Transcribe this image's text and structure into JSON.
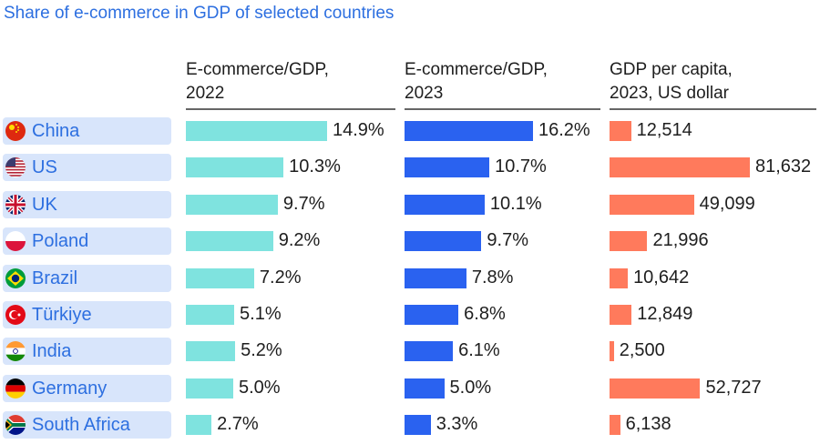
{
  "title": "Share of e-commerce in GDP of selected countries",
  "headers": {
    "col1": [
      "E-commerce/GDP,",
      "2022"
    ],
    "col2": [
      "E-commerce/GDP,",
      "2023"
    ],
    "col3": [
      "GDP per capita,",
      "2023, US dollar"
    ]
  },
  "colors": {
    "bar_2022": "#7fe3df",
    "bar_2023": "#2a62f0",
    "bar_gdp": "#ff7a5c",
    "label_bg": "#d8e5fb",
    "label_text": "#2d6fe0"
  },
  "rows": [
    {
      "country": "China",
      "flag": "china-flag-icon",
      "v2022": "14.9%",
      "v2023": "16.2%",
      "gdp": "12,514"
    },
    {
      "country": "US",
      "flag": "us-flag-icon",
      "v2022": "10.3%",
      "v2023": "10.7%",
      "gdp": "81,632"
    },
    {
      "country": "UK",
      "flag": "uk-flag-icon",
      "v2022": "9.7%",
      "v2023": "10.1%",
      "gdp": "49,099"
    },
    {
      "country": "Poland",
      "flag": "poland-flag-icon",
      "v2022": "9.2%",
      "v2023": "9.7%",
      "gdp": "21,996"
    },
    {
      "country": "Brazil",
      "flag": "brazil-flag-icon",
      "v2022": "7.2%",
      "v2023": "7.8%",
      "gdp": "10,642"
    },
    {
      "country": "Türkiye",
      "flag": "turkiye-flag-icon",
      "v2022": "5.1%",
      "v2023": "6.8%",
      "gdp": "12,849"
    },
    {
      "country": "India",
      "flag": "india-flag-icon",
      "v2022": "5.2%",
      "v2023": "6.1%",
      "gdp": "2,500"
    },
    {
      "country": "Germany",
      "flag": "germany-flag-icon",
      "v2022": "5.0%",
      "v2023": "5.0%",
      "gdp": "52,727"
    },
    {
      "country": "South Africa",
      "flag": "south-africa-flag-icon",
      "v2022": "2.7%",
      "v2023": "3.3%",
      "gdp": "6,138"
    }
  ],
  "chart_data": {
    "type": "bar",
    "orientation": "horizontal",
    "title": "Share of e-commerce in GDP of selected countries",
    "categories": [
      "China",
      "US",
      "UK",
      "Poland",
      "Brazil",
      "Türkiye",
      "India",
      "Germany",
      "South Africa"
    ],
    "series": [
      {
        "name": "E-commerce/GDP, 2022",
        "unit": "%",
        "values": [
          14.9,
          10.3,
          9.7,
          9.2,
          7.2,
          5.1,
          5.2,
          5.0,
          2.7
        ]
      },
      {
        "name": "E-commerce/GDP, 2023",
        "unit": "%",
        "values": [
          16.2,
          10.7,
          10.1,
          9.7,
          7.8,
          6.8,
          6.1,
          5.0,
          3.3
        ]
      },
      {
        "name": "GDP per capita, 2023, US dollar",
        "unit": "US dollar",
        "values": [
          12514,
          81632,
          49099,
          21996,
          10642,
          12849,
          2500,
          52727,
          6138
        ]
      }
    ],
    "grid": false,
    "legend": "none"
  }
}
